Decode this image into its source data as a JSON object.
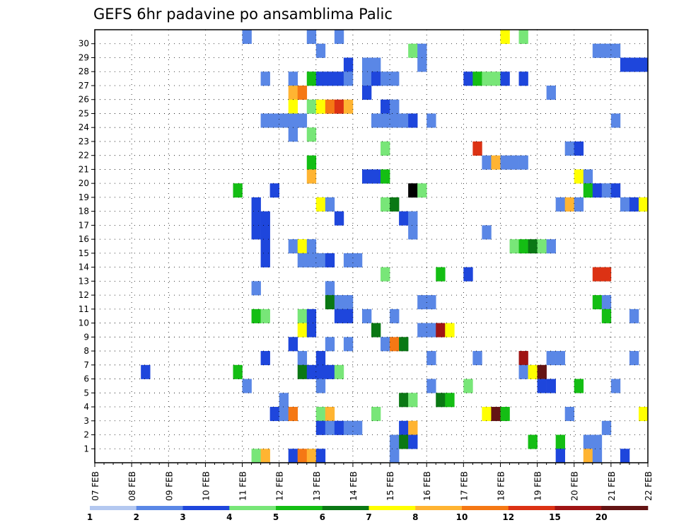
{
  "chart_data": {
    "type": "heatmap",
    "title": "GEFS 6hr padavine po ansamblima Palic",
    "xlabel": "",
    "ylabel": "",
    "x_tick_labels": [
      "07 FEB",
      "08 FEB",
      "09 FEB",
      "10 FEB",
      "11 FEB",
      "12 FEB",
      "13 FEB",
      "14 FEB",
      "15 FEB",
      "16 FEB",
      "17 FEB",
      "18 FEB",
      "19 FEB",
      "20 FEB",
      "21 FEB",
      "22 FEB"
    ],
    "y_tick_labels": [
      "1",
      "2",
      "3",
      "4",
      "5",
      "6",
      "7",
      "8",
      "9",
      "10",
      "11",
      "12",
      "13",
      "14",
      "15",
      "16",
      "17",
      "18",
      "19",
      "20",
      "21",
      "22",
      "23",
      "24",
      "25",
      "26",
      "27",
      "28",
      "29",
      "30"
    ],
    "x_range_steps": [
      0,
      60
    ],
    "y_range_members": [
      0,
      30
    ],
    "grid": true,
    "legend_position": "bottom",
    "colorbar": {
      "labels": [
        "1",
        "2",
        "3",
        "4",
        "5",
        "6",
        "7",
        "8",
        "10",
        "12",
        "15",
        "20"
      ],
      "colors": [
        "#b4c8f0",
        "#5a87e6",
        "#1e46dc",
        "#78e678",
        "#14be14",
        "#0a7814",
        "#ffff00",
        "#ffb432",
        "#f57814",
        "#dc3214",
        "#a01414",
        "#641414"
      ]
    },
    "cells": [
      [
        30,
        16,
        1
      ],
      [
        30,
        23,
        1
      ],
      [
        30,
        26,
        1
      ],
      [
        30,
        44,
        6
      ],
      [
        30,
        46,
        3
      ],
      [
        29,
        24,
        1
      ],
      [
        29,
        34,
        3
      ],
      [
        29,
        35,
        1
      ],
      [
        29,
        54,
        1
      ],
      [
        29,
        55,
        1
      ],
      [
        29,
        56,
        1
      ],
      [
        28,
        27,
        2
      ],
      [
        28,
        29,
        1
      ],
      [
        28,
        30,
        1
      ],
      [
        28,
        35,
        1
      ],
      [
        28,
        57,
        2
      ],
      [
        28,
        58,
        2
      ],
      [
        28,
        59,
        2
      ],
      [
        27,
        18,
        1
      ],
      [
        27,
        21,
        1
      ],
      [
        27,
        23,
        4
      ],
      [
        27,
        24,
        2
      ],
      [
        27,
        25,
        2
      ],
      [
        27,
        26,
        2
      ],
      [
        27,
        27,
        1
      ],
      [
        27,
        29,
        1
      ],
      [
        27,
        30,
        2
      ],
      [
        27,
        31,
        1
      ],
      [
        27,
        32,
        1
      ],
      [
        27,
        40,
        2
      ],
      [
        27,
        41,
        4
      ],
      [
        27,
        42,
        3
      ],
      [
        27,
        43,
        3
      ],
      [
        27,
        44,
        2
      ],
      [
        27,
        46,
        2
      ],
      [
        26,
        21,
        7
      ],
      [
        26,
        22,
        8
      ],
      [
        26,
        29,
        2
      ],
      [
        26,
        49,
        1
      ],
      [
        25,
        21,
        6
      ],
      [
        25,
        23,
        3
      ],
      [
        25,
        24,
        6
      ],
      [
        25,
        25,
        8
      ],
      [
        25,
        26,
        9
      ],
      [
        25,
        27,
        7
      ],
      [
        25,
        31,
        2
      ],
      [
        25,
        32,
        1
      ],
      [
        24,
        18,
        1
      ],
      [
        24,
        19,
        1
      ],
      [
        24,
        20,
        1
      ],
      [
        24,
        21,
        1
      ],
      [
        24,
        22,
        1
      ],
      [
        24,
        30,
        1
      ],
      [
        24,
        31,
        1
      ],
      [
        24,
        32,
        1
      ],
      [
        24,
        33,
        1
      ],
      [
        24,
        34,
        2
      ],
      [
        24,
        36,
        1
      ],
      [
        24,
        56,
        1
      ],
      [
        23,
        21,
        1
      ],
      [
        23,
        23,
        3
      ],
      [
        22,
        31,
        3
      ],
      [
        22,
        41,
        9
      ],
      [
        22,
        51,
        1
      ],
      [
        22,
        52,
        2
      ],
      [
        21,
        23,
        4
      ],
      [
        21,
        42,
        1
      ],
      [
        21,
        43,
        7
      ],
      [
        21,
        44,
        1
      ],
      [
        21,
        45,
        1
      ],
      [
        21,
        46,
        1
      ],
      [
        20,
        23,
        7
      ],
      [
        20,
        29,
        2
      ],
      [
        20,
        30,
        2
      ],
      [
        20,
        31,
        4
      ],
      [
        20,
        52,
        6
      ],
      [
        20,
        53,
        1
      ],
      [
        19,
        15,
        4
      ],
      [
        19,
        19,
        2
      ],
      [
        19,
        34,
        12
      ],
      [
        19,
        35,
        3
      ],
      [
        19,
        53,
        4
      ],
      [
        19,
        54,
        2
      ],
      [
        19,
        55,
        1
      ],
      [
        19,
        56,
        2
      ],
      [
        18,
        17,
        2
      ],
      [
        18,
        24,
        6
      ],
      [
        18,
        25,
        1
      ],
      [
        18,
        31,
        3
      ],
      [
        18,
        32,
        5
      ],
      [
        18,
        50,
        1
      ],
      [
        18,
        51,
        7
      ],
      [
        18,
        52,
        1
      ],
      [
        18,
        57,
        1
      ],
      [
        18,
        58,
        2
      ],
      [
        18,
        59,
        6
      ],
      [
        17,
        17,
        2
      ],
      [
        17,
        18,
        2
      ],
      [
        17,
        26,
        2
      ],
      [
        17,
        33,
        2
      ],
      [
        17,
        34,
        1
      ],
      [
        16,
        17,
        2
      ],
      [
        16,
        18,
        2
      ],
      [
        16,
        34,
        1
      ],
      [
        16,
        42,
        1
      ],
      [
        15,
        18,
        2
      ],
      [
        15,
        21,
        1
      ],
      [
        15,
        22,
        6
      ],
      [
        15,
        23,
        1
      ],
      [
        15,
        45,
        3
      ],
      [
        15,
        46,
        4
      ],
      [
        15,
        47,
        5
      ],
      [
        15,
        48,
        3
      ],
      [
        15,
        49,
        1
      ],
      [
        14,
        18,
        2
      ],
      [
        14,
        22,
        1
      ],
      [
        14,
        23,
        1
      ],
      [
        14,
        24,
        1
      ],
      [
        14,
        25,
        2
      ],
      [
        14,
        27,
        1
      ],
      [
        14,
        28,
        1
      ],
      [
        13,
        31,
        3
      ],
      [
        13,
        37,
        4
      ],
      [
        13,
        40,
        2
      ],
      [
        13,
        54,
        9
      ],
      [
        13,
        55,
        9
      ],
      [
        12,
        17,
        1
      ],
      [
        12,
        25,
        1
      ],
      [
        11,
        25,
        5
      ],
      [
        11,
        26,
        1
      ],
      [
        11,
        27,
        1
      ],
      [
        11,
        35,
        1
      ],
      [
        11,
        36,
        1
      ],
      [
        11,
        54,
        4
      ],
      [
        11,
        55,
        1
      ],
      [
        10,
        17,
        4
      ],
      [
        10,
        18,
        3
      ],
      [
        10,
        22,
        3
      ],
      [
        10,
        23,
        2
      ],
      [
        10,
        26,
        2
      ],
      [
        10,
        27,
        2
      ],
      [
        10,
        29,
        1
      ],
      [
        10,
        32,
        1
      ],
      [
        10,
        55,
        4
      ],
      [
        10,
        58,
        1
      ],
      [
        9,
        22,
        6
      ],
      [
        9,
        23,
        2
      ],
      [
        9,
        30,
        5
      ],
      [
        9,
        35,
        1
      ],
      [
        9,
        36,
        1
      ],
      [
        9,
        37,
        10
      ],
      [
        9,
        38,
        6
      ],
      [
        8,
        21,
        2
      ],
      [
        8,
        25,
        1
      ],
      [
        8,
        27,
        1
      ],
      [
        8,
        31,
        1
      ],
      [
        8,
        32,
        8
      ],
      [
        8,
        33,
        5
      ],
      [
        7,
        18,
        2
      ],
      [
        7,
        22,
        1
      ],
      [
        7,
        24,
        2
      ],
      [
        7,
        36,
        1
      ],
      [
        7,
        41,
        1
      ],
      [
        7,
        46,
        10
      ],
      [
        7,
        49,
        1
      ],
      [
        7,
        50,
        1
      ],
      [
        7,
        58,
        1
      ],
      [
        6,
        5,
        2
      ],
      [
        6,
        15,
        4
      ],
      [
        6,
        22,
        5
      ],
      [
        6,
        23,
        2
      ],
      [
        6,
        24,
        2
      ],
      [
        6,
        25,
        2
      ],
      [
        6,
        26,
        3
      ],
      [
        6,
        46,
        1
      ],
      [
        6,
        47,
        6
      ],
      [
        6,
        48,
        11
      ],
      [
        5,
        16,
        1
      ],
      [
        5,
        24,
        1
      ],
      [
        5,
        36,
        1
      ],
      [
        5,
        40,
        3
      ],
      [
        5,
        48,
        2
      ],
      [
        5,
        49,
        2
      ],
      [
        5,
        52,
        4
      ],
      [
        5,
        56,
        1
      ],
      [
        4,
        20,
        1
      ],
      [
        4,
        33,
        5
      ],
      [
        4,
        34,
        3
      ],
      [
        4,
        37,
        5
      ],
      [
        4,
        38,
        4
      ],
      [
        3,
        19,
        2
      ],
      [
        3,
        20,
        1
      ],
      [
        3,
        21,
        8
      ],
      [
        3,
        24,
        3
      ],
      [
        3,
        25,
        7
      ],
      [
        3,
        30,
        3
      ],
      [
        3,
        42,
        6
      ],
      [
        3,
        43,
        11
      ],
      [
        3,
        44,
        4
      ],
      [
        3,
        51,
        1
      ],
      [
        3,
        59,
        6
      ],
      [
        2,
        24,
        2
      ],
      [
        2,
        25,
        1
      ],
      [
        2,
        26,
        2
      ],
      [
        2,
        27,
        1
      ],
      [
        2,
        28,
        1
      ],
      [
        2,
        33,
        2
      ],
      [
        2,
        34,
        7
      ],
      [
        2,
        55,
        1
      ],
      [
        1,
        32,
        1
      ],
      [
        1,
        33,
        5
      ],
      [
        1,
        34,
        2
      ],
      [
        1,
        47,
        4
      ],
      [
        1,
        50,
        4
      ],
      [
        1,
        53,
        1
      ],
      [
        1,
        54,
        1
      ],
      [
        0,
        17,
        3
      ],
      [
        0,
        18,
        7
      ],
      [
        0,
        21,
        2
      ],
      [
        0,
        22,
        8
      ],
      [
        0,
        23,
        7
      ],
      [
        0,
        24,
        2
      ],
      [
        0,
        32,
        1
      ],
      [
        0,
        50,
        2
      ],
      [
        0,
        53,
        7
      ],
      [
        0,
        54,
        1
      ],
      [
        0,
        57,
        2
      ]
    ]
  }
}
